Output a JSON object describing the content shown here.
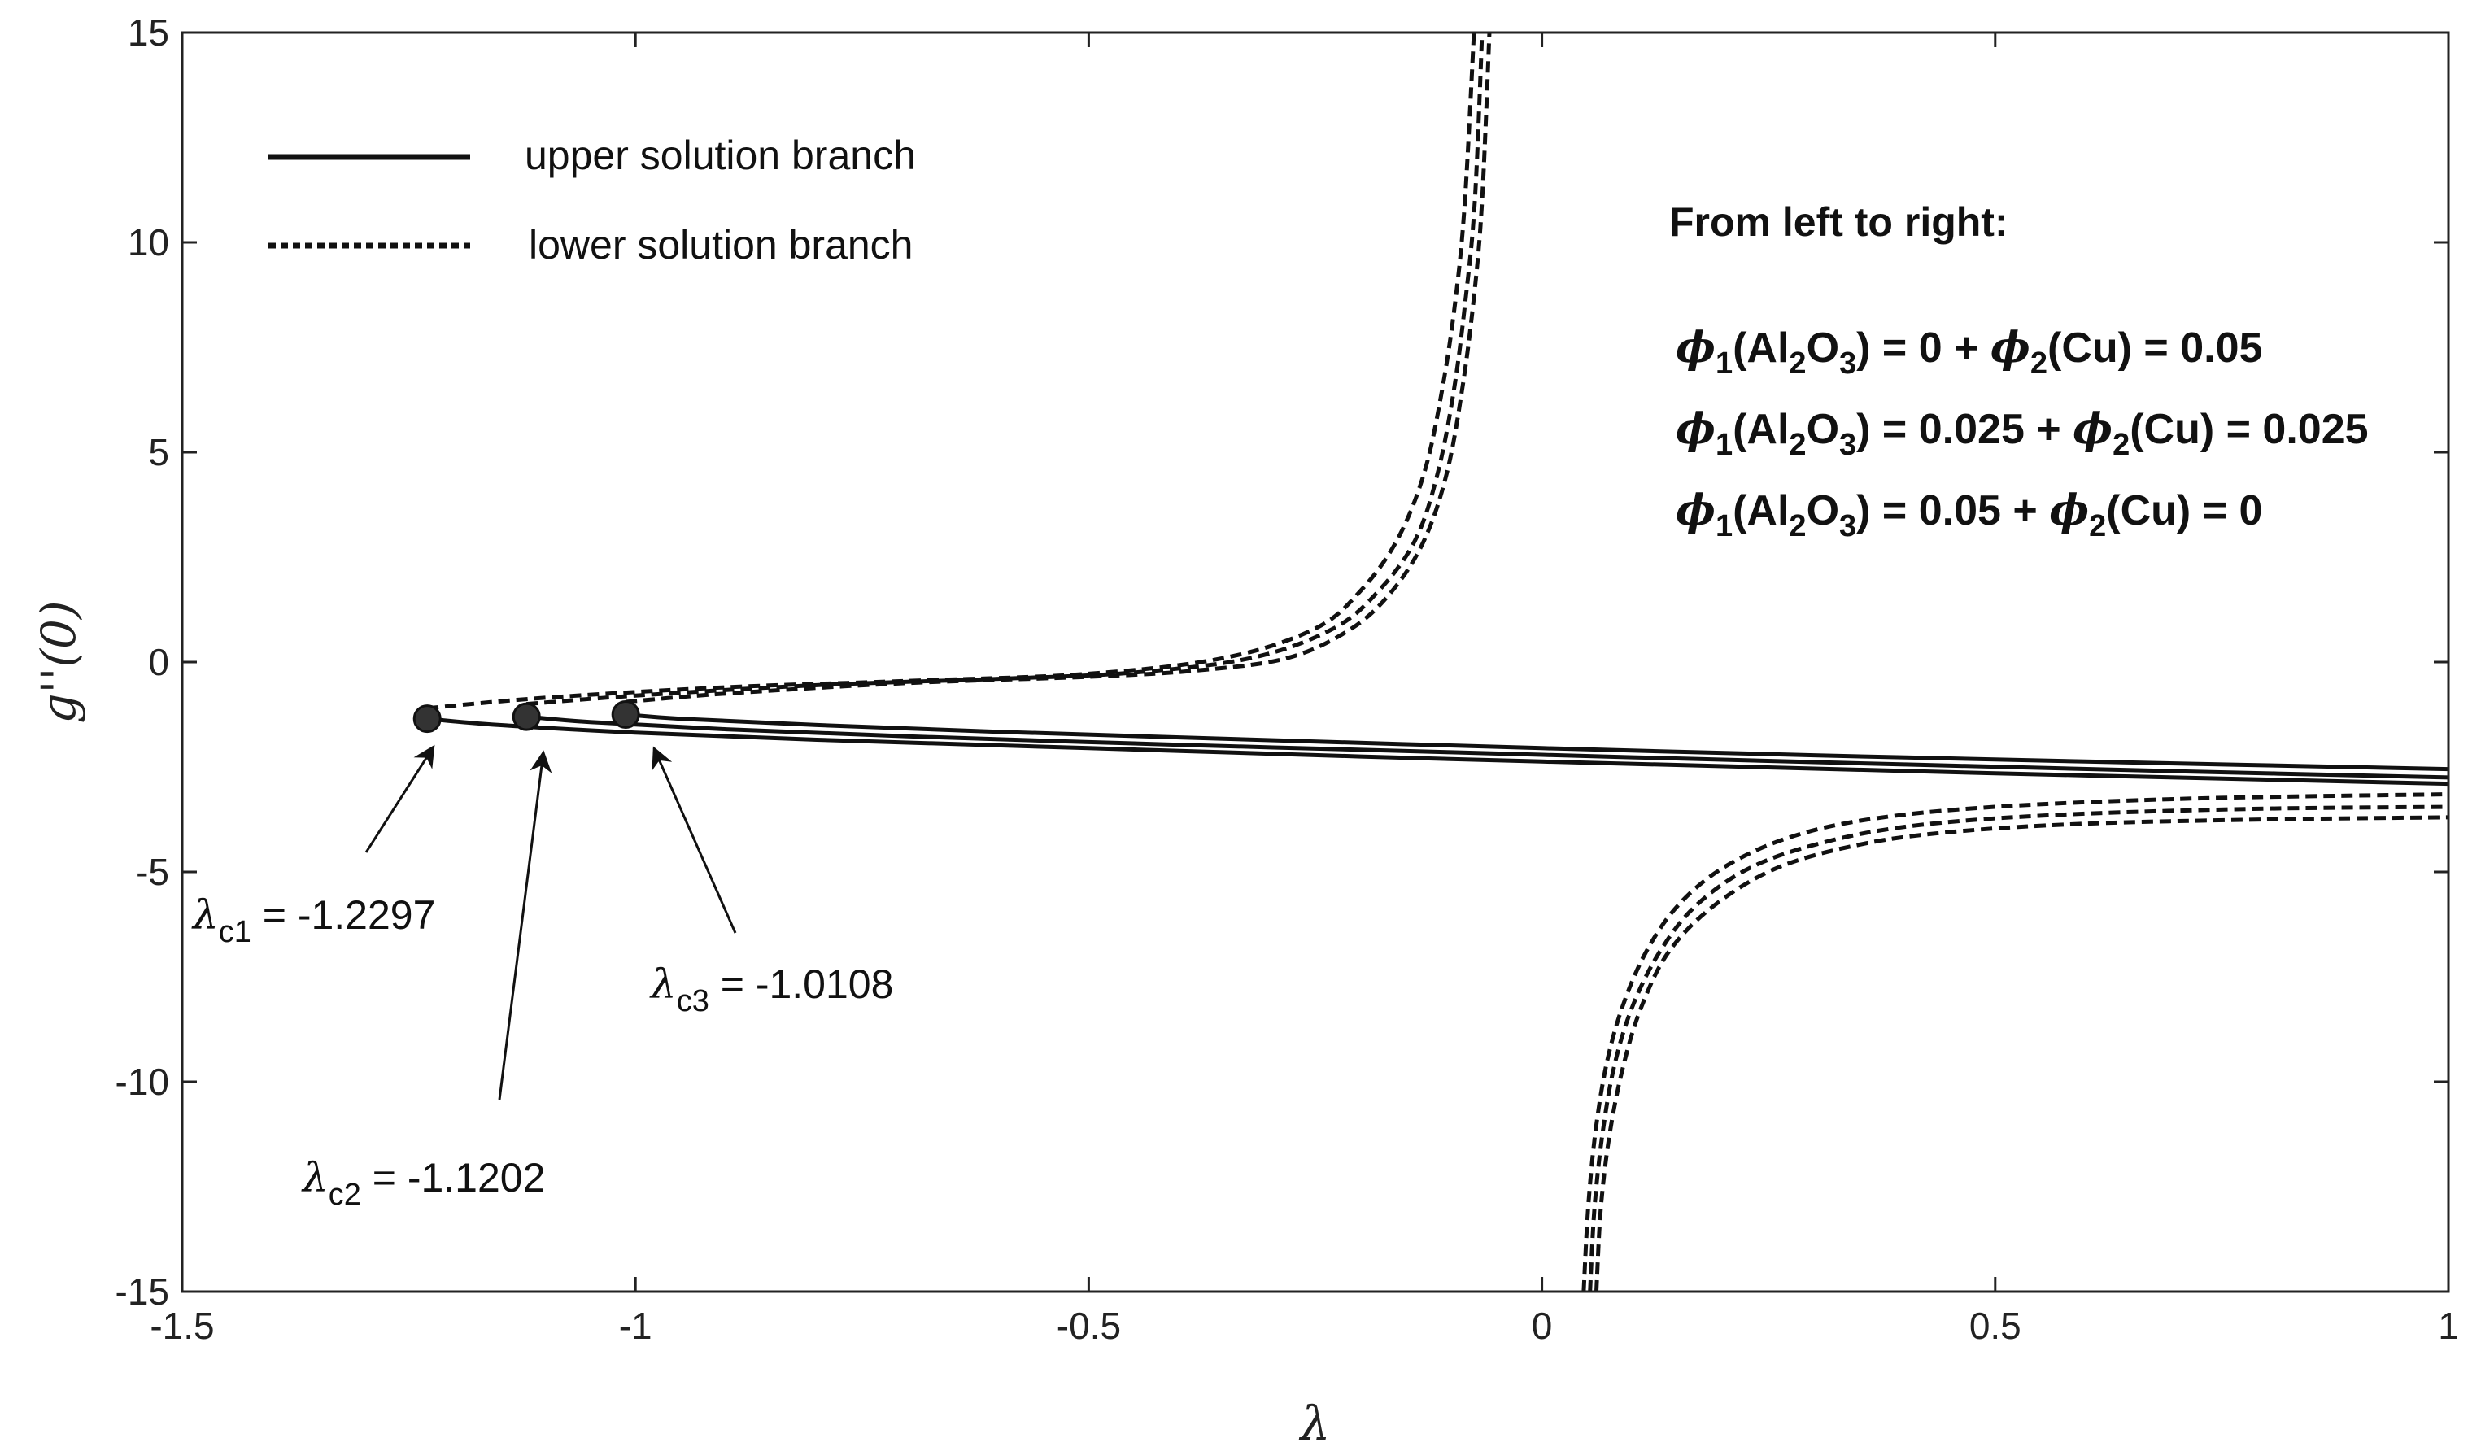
{
  "chart_data": {
    "type": "line",
    "xlabel": "λ",
    "ylabel": "g''(0)",
    "xlim": [
      -1.5,
      1
    ],
    "ylim": [
      -15,
      15
    ],
    "xticks": [
      -1.5,
      -1,
      -0.5,
      0,
      0.5,
      1
    ],
    "yticks": [
      -15,
      -10,
      -5,
      0,
      5,
      10,
      15
    ],
    "xtick_labels": [
      "-1.5",
      "-1",
      "-0.5",
      "0",
      "0.5",
      "1"
    ],
    "ytick_labels": [
      "-15",
      "-10",
      "-5",
      "0",
      "5",
      "10",
      "15"
    ],
    "grid": false,
    "legend": {
      "placement": "top-left",
      "entries": [
        {
          "label": "upper solution branch",
          "style": "solid"
        },
        {
          "label": "lower solution branch",
          "style": "dashed"
        }
      ]
    },
    "note": {
      "title": "From left to right:",
      "lines": [
        {
          "a": "1",
          "b": "(Al",
          "c": "2",
          "d": "O",
          "e": "3",
          "f": ") = 0 + ",
          "g": "2",
          "h": "(Cu) = 0.05"
        },
        {
          "a": "1",
          "b": "(Al",
          "c": "2",
          "d": "O",
          "e": "3",
          "f": ") = 0.025 + ",
          "g": "2",
          "h": "(Cu) = 0.025"
        },
        {
          "a": "1",
          "b": "(Al",
          "c": "2",
          "d": "O",
          "e": "3",
          "f": ") = 0.05 + ",
          "g": "2",
          "h": "(Cu) = 0"
        }
      ],
      "phi_symbol": "ϕ"
    },
    "critical_points": [
      {
        "label_sub": "c1",
        "value_text": " = -1.2297",
        "x": -1.2297,
        "y": -1.35
      },
      {
        "label_sub": "c2",
        "value_text": " = -1.1202",
        "x": -1.1202,
        "y": -1.3
      },
      {
        "label_sub": "c3",
        "value_text": " = -1.0108",
        "x": -1.0108,
        "y": -1.25
      }
    ],
    "lambda_symbol": "λ",
    "series": [
      {
        "branch": "upper",
        "style": "solid",
        "x": [
          -1.2297,
          -1.15,
          -1.0,
          -0.8,
          -0.5,
          -0.2,
          0,
          0.2,
          0.5,
          0.8,
          1.0
        ],
        "y": [
          -1.35,
          -1.5,
          -1.68,
          -1.85,
          -2.05,
          -2.25,
          -2.37,
          -2.48,
          -2.65,
          -2.8,
          -2.9
        ]
      },
      {
        "branch": "upper",
        "style": "solid",
        "x": [
          -1.1202,
          -1.05,
          -0.9,
          -0.7,
          -0.4,
          -0.1,
          0.1,
          0.4,
          0.7,
          1.0
        ],
        "y": [
          -1.3,
          -1.43,
          -1.6,
          -1.77,
          -1.97,
          -2.15,
          -2.27,
          -2.44,
          -2.6,
          -2.75
        ]
      },
      {
        "branch": "upper",
        "style": "solid",
        "x": [
          -1.0108,
          -0.95,
          -0.8,
          -0.6,
          -0.3,
          0,
          0.3,
          0.6,
          1.0
        ],
        "y": [
          -1.25,
          -1.35,
          -1.5,
          -1.66,
          -1.86,
          -2.05,
          -2.22,
          -2.37,
          -2.55
        ]
      },
      {
        "branch": "lower",
        "style": "dashed",
        "x": [
          -1.2297,
          -1.1,
          -0.9,
          -0.7,
          -0.5,
          -0.35,
          -0.25,
          -0.2,
          -0.16,
          -0.13,
          -0.11,
          -0.095,
          -0.085,
          -0.075
        ],
        "y": [
          -1.1,
          -0.85,
          -0.6,
          -0.45,
          -0.28,
          0.1,
          0.8,
          1.7,
          2.9,
          4.5,
          6.5,
          8.7,
          11.0,
          15
        ],
        "x2": [
          0.06,
          0.065,
          0.075,
          0.09,
          0.11,
          0.14,
          0.19,
          0.26,
          0.35,
          0.45,
          0.6,
          0.8,
          1.0
        ],
        "y2": [
          -15,
          -13.0,
          -11.2,
          -9.6,
          -8.2,
          -6.9,
          -5.8,
          -4.9,
          -4.35,
          -4.05,
          -3.85,
          -3.75,
          -3.7
        ]
      },
      {
        "branch": "lower",
        "style": "dashed",
        "x": [
          -1.1202,
          -1.0,
          -0.8,
          -0.6,
          -0.45,
          -0.32,
          -0.23,
          -0.18,
          -0.14,
          -0.115,
          -0.097,
          -0.084,
          -0.074,
          -0.066
        ],
        "y": [
          -1.0,
          -0.8,
          -0.55,
          -0.4,
          -0.25,
          0.1,
          0.8,
          1.7,
          2.9,
          4.5,
          6.5,
          8.7,
          11.0,
          15
        ],
        "x2": [
          0.053,
          0.058,
          0.067,
          0.08,
          0.1,
          0.13,
          0.17,
          0.23,
          0.31,
          0.41,
          0.56,
          0.78,
          1.0
        ],
        "y2": [
          -15,
          -13.0,
          -11.2,
          -9.6,
          -8.2,
          -6.9,
          -5.8,
          -4.9,
          -4.3,
          -3.9,
          -3.65,
          -3.5,
          -3.45
        ]
      },
      {
        "branch": "lower",
        "style": "dashed",
        "x": [
          -1.0108,
          -0.9,
          -0.7,
          -0.5,
          -0.38,
          -0.28,
          -0.21,
          -0.165,
          -0.13,
          -0.105,
          -0.088,
          -0.075,
          -0.066,
          -0.058
        ],
        "y": [
          -0.95,
          -0.75,
          -0.5,
          -0.35,
          -0.2,
          0.1,
          0.8,
          1.7,
          2.9,
          4.5,
          6.5,
          8.7,
          11.0,
          15
        ],
        "x2": [
          0.046,
          0.051,
          0.059,
          0.071,
          0.089,
          0.115,
          0.15,
          0.2,
          0.27,
          0.36,
          0.5,
          0.72,
          1.0
        ],
        "y2": [
          -15,
          -13.0,
          -11.2,
          -9.6,
          -8.2,
          -6.9,
          -5.8,
          -4.9,
          -4.2,
          -3.75,
          -3.45,
          -3.25,
          -3.15
        ]
      }
    ]
  }
}
